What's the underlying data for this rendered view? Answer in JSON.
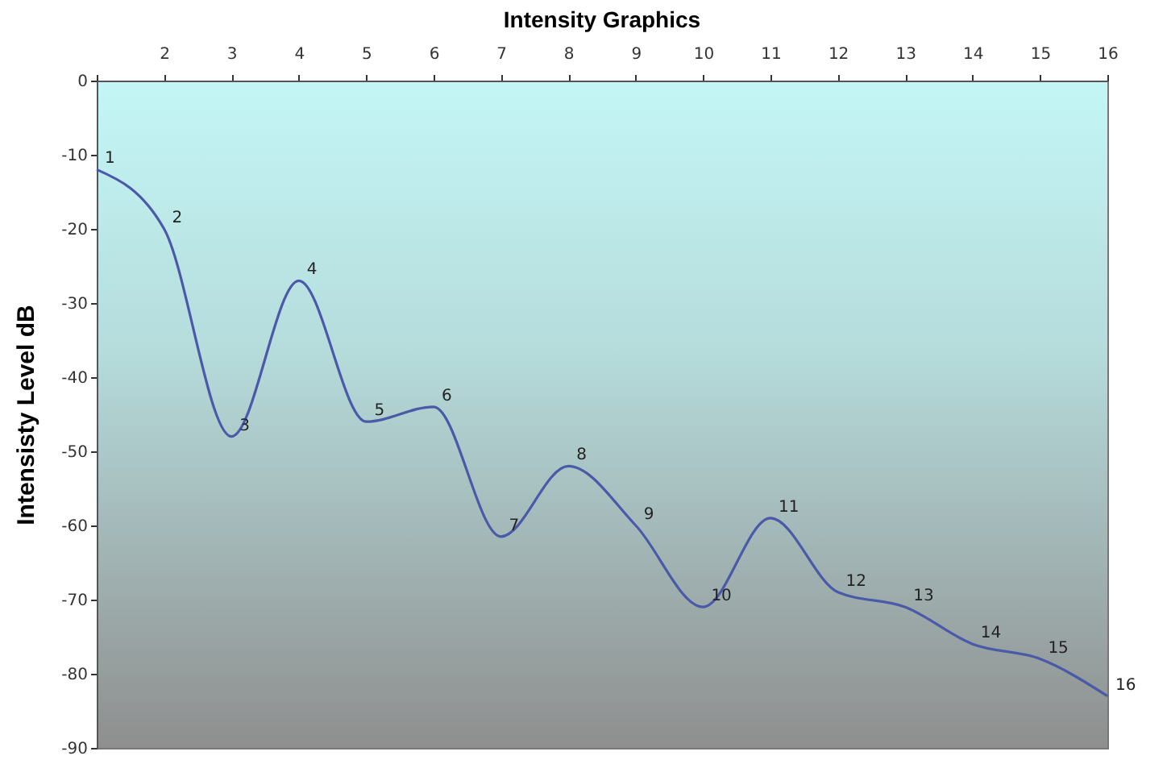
{
  "chart_data": {
    "type": "line",
    "title": "Intensity Graphics",
    "ylabel": "Intensisty Level dB",
    "x": [
      1,
      2,
      3,
      4,
      5,
      6,
      7,
      8,
      9,
      10,
      11,
      12,
      13,
      14,
      15,
      16
    ],
    "series": [
      {
        "color": "#4a5aa8",
        "values": [
          -12,
          -20,
          -48,
          -27,
          -46,
          -44,
          -61.5,
          -52,
          -60,
          -71,
          -59,
          -69,
          -71,
          -76,
          -78,
          -83
        ]
      }
    ],
    "value_labels": [
      "1",
      "2",
      "3",
      "4",
      "5",
      "6",
      "7",
      "8",
      "9",
      "10",
      "11",
      "12",
      "13",
      "14",
      "15",
      "16"
    ],
    "xlim": [
      1,
      16
    ],
    "xticks": [
      {
        "value": 1,
        "label": null
      },
      2,
      3,
      4,
      5,
      6,
      7,
      8,
      9,
      10,
      11,
      12,
      13,
      14,
      15,
      16
    ],
    "ylim": [
      -90,
      0
    ],
    "yticks": [
      0,
      -10,
      -20,
      -30,
      -40,
      -50,
      -60,
      -70,
      -80,
      -90
    ],
    "grid": false,
    "marker": "none",
    "line_style": "solid"
  }
}
